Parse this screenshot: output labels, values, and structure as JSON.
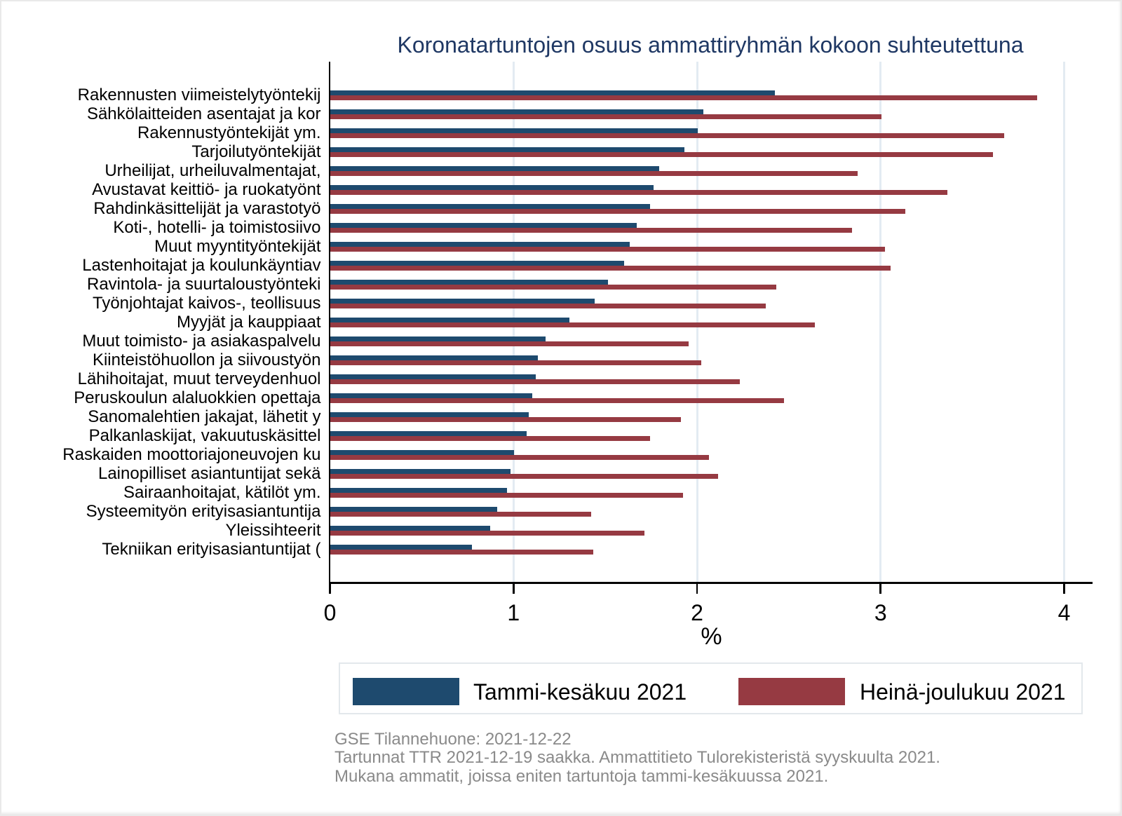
{
  "chart_data": {
    "type": "bar",
    "orientation": "horizontal",
    "title": "Koronatartuntojen osuus ammattiryhmän kokoon suhteutettuna",
    "xlabel": "%",
    "xlim": [
      0,
      4.2
    ],
    "x_ticks": [
      "0",
      "1",
      "2",
      "3",
      "4"
    ],
    "grid": true,
    "legend_position": "bottom",
    "categories": [
      "Rakennusten viimeistelytyöntekij",
      "Sähkölaitteiden asentajat ja kor",
      "Rakennustyöntekijät ym.",
      "Tarjoilutyöntekijät",
      "Urheilijat, urheiluvalmentajat,",
      "Avustavat keittiö- ja ruokatyönt",
      "Rahdinkäsittelijät ja varastotyö",
      "Koti-, hotelli- ja toimistosiivo",
      "Muut myyntityöntekijät",
      "Lastenhoitajat ja koulunkäyntiav",
      "Ravintola- ja suurtaloustyönteki",
      "Työnjohtajat kaivos-, teollisuus",
      "Myyjät ja kauppiaat",
      "Muut toimisto- ja asiakaspalvelu",
      "Kiinteistöhuollon ja siivoustyön",
      "Lähihoitajat, muut terveydenhuol",
      "Peruskoulun alaluokkien opettaja",
      "Sanomalehtien jakajat, lähetit y",
      "Palkanlaskijat, vakuutuskäsittel",
      "Raskaiden moottoriajoneuvojen ku",
      "Lainopilliset asiantuntijat sekä",
      "Sairaanhoitajat, kätilöt ym.",
      "Systeemityön erityisasiantuntija",
      "Yleissihteerit",
      "Tekniikan erityisasiantuntijat ("
    ],
    "series": [
      {
        "name": "Tammi-kesäkuu 2021",
        "color": "#1e4a6e",
        "values": [
          2.42,
          2.03,
          2.0,
          1.93,
          1.79,
          1.76,
          1.74,
          1.67,
          1.63,
          1.6,
          1.51,
          1.44,
          1.3,
          1.17,
          1.13,
          1.12,
          1.1,
          1.08,
          1.07,
          1.0,
          0.98,
          0.96,
          0.91,
          0.87,
          0.77
        ]
      },
      {
        "name": "Heinä-joulukuu 2021",
        "color": "#963a42",
        "values": [
          3.85,
          3.0,
          3.67,
          3.61,
          2.87,
          3.36,
          3.13,
          2.84,
          3.02,
          3.05,
          2.43,
          2.37,
          2.64,
          1.95,
          2.02,
          2.23,
          2.47,
          1.91,
          1.74,
          2.06,
          2.11,
          1.92,
          1.42,
          1.71,
          1.43
        ]
      }
    ],
    "notes": [
      "GSE Tilannehuone: 2021-12-22",
      "Tartunnat TTR 2021-12-19 saakka. Ammattitieto Tulorekisteristä syyskuulta 2021.",
      "Mukana ammatit, joissa eniten tartuntoja tammi-kesäkuussa 2021."
    ]
  },
  "colors": {
    "title": "#1f3864",
    "gridline": "#e7eef3",
    "axis": "#000000",
    "notes": "#8a8a8a",
    "legend_border": "#e3e8ec",
    "background": "#ffffff"
  }
}
